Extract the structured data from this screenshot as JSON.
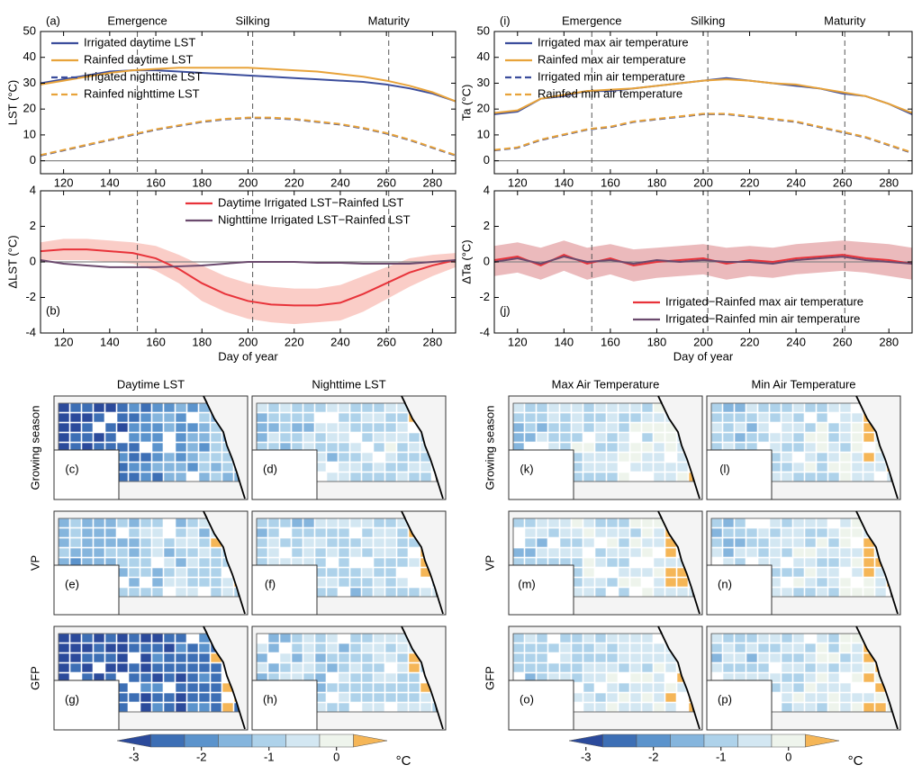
{
  "chart_data": [
    {
      "type": "line",
      "panel_label": "(a)",
      "ylabel": "LST (°C)",
      "legend": "upper left",
      "xlim": [
        110,
        290
      ],
      "xticks": [
        120,
        140,
        160,
        180,
        200,
        220,
        240,
        260,
        280
      ],
      "ylim": [
        -5,
        50
      ],
      "yticks": [
        0,
        10,
        20,
        30,
        40,
        50
      ],
      "annotations": [
        {
          "label": "Emergence",
          "x": 152
        },
        {
          "label": "Silking",
          "x": 202
        },
        {
          "label": "Maturity",
          "x": 261
        }
      ],
      "x": [
        110,
        120,
        130,
        140,
        150,
        160,
        170,
        180,
        190,
        200,
        210,
        220,
        230,
        240,
        250,
        260,
        270,
        280,
        290
      ],
      "series": [
        {
          "name": "Irrigated daytime LST",
          "color": "#3b4d9c",
          "dash": false,
          "values": [
            30,
            31.5,
            33,
            34.5,
            35,
            35,
            34.5,
            34,
            33.5,
            33,
            32.5,
            32,
            31.5,
            31,
            30.5,
            29.5,
            28,
            26,
            23
          ]
        },
        {
          "name": "Rainfed daytime LST",
          "color": "#e8a33a",
          "dash": false,
          "values": [
            29.5,
            31,
            32.5,
            34,
            35,
            35.5,
            36,
            36,
            36,
            36,
            35.5,
            35,
            34.5,
            33.5,
            32.5,
            31,
            29,
            26.5,
            23
          ]
        },
        {
          "name": "Irrigated nighttime LST",
          "color": "#3b4d9c",
          "dash": true,
          "values": [
            2,
            4,
            6,
            8,
            10,
            12,
            13.5,
            15,
            16,
            16.5,
            16.5,
            16,
            15,
            14,
            12.5,
            10.5,
            8,
            5,
            2
          ]
        },
        {
          "name": "Rainfed nighttime LST",
          "color": "#e8a33a",
          "dash": true,
          "values": [
            2.2,
            4.2,
            6.2,
            8.2,
            10.2,
            12.2,
            13.7,
            15.2,
            16.2,
            16.7,
            16.7,
            16.2,
            15.2,
            14.2,
            12.7,
            10.7,
            8.2,
            5.2,
            2.2
          ]
        }
      ]
    },
    {
      "type": "line",
      "panel_label": "(b)",
      "ylabel": "ΔLST (°C)",
      "xlabel": "Day of year",
      "legend": "upper right",
      "xlim": [
        110,
        290
      ],
      "xticks": [
        120,
        140,
        160,
        180,
        200,
        220,
        240,
        260,
        280
      ],
      "ylim": [
        -4,
        4
      ],
      "yticks": [
        -4,
        -2,
        0,
        2,
        4
      ],
      "phase_lines": [
        152,
        202,
        261
      ],
      "x": [
        110,
        120,
        130,
        140,
        150,
        160,
        170,
        180,
        190,
        200,
        210,
        220,
        230,
        240,
        250,
        260,
        270,
        280,
        290
      ],
      "series": [
        {
          "name": "Daytime Irrigated LST−Rainfed LST",
          "color": "#e8333a",
          "band_color": "#f8bcb4",
          "dash": false,
          "values": [
            0.6,
            0.7,
            0.7,
            0.6,
            0.5,
            0.2,
            -0.4,
            -1.2,
            -1.8,
            -2.2,
            -2.4,
            -2.45,
            -2.45,
            -2.3,
            -1.8,
            -1.2,
            -0.6,
            -0.2,
            0.1
          ],
          "upper": [
            1.1,
            1.3,
            1.3,
            1.2,
            1.1,
            0.9,
            0.4,
            -0.2,
            -0.8,
            -1.2,
            -1.4,
            -1.5,
            -1.5,
            -1.3,
            -0.8,
            -0.3,
            0.2,
            0.4,
            0.5
          ],
          "lower": [
            0.1,
            0.1,
            0.1,
            0,
            -0.1,
            -0.5,
            -1.2,
            -2.2,
            -2.8,
            -3.2,
            -3.4,
            -3.5,
            -3.4,
            -3.3,
            -2.8,
            -2.1,
            -1.4,
            -0.8,
            -0.3
          ]
        },
        {
          "name": "Nighttime Irrigated LST−Rainfed LST",
          "color": "#6b4a6e",
          "dash": false,
          "values": [
            0.1,
            -0.1,
            -0.2,
            -0.3,
            -0.3,
            -0.3,
            -0.25,
            -0.2,
            -0.1,
            0,
            0,
            0,
            -0.05,
            -0.05,
            -0.1,
            -0.1,
            -0.1,
            0,
            0.1
          ]
        }
      ]
    },
    {
      "type": "line",
      "panel_label": "(i)",
      "ylabel": "Ta (°C)",
      "legend": "upper left",
      "xlim": [
        110,
        290
      ],
      "xticks": [
        120,
        140,
        160,
        180,
        200,
        220,
        240,
        260,
        280
      ],
      "ylim": [
        -5,
        50
      ],
      "yticks": [
        0,
        10,
        20,
        30,
        40,
        50
      ],
      "annotations": [
        {
          "label": "Emergence",
          "x": 152
        },
        {
          "label": "Silking",
          "x": 202
        },
        {
          "label": "Maturity",
          "x": 261
        }
      ],
      "x": [
        110,
        120,
        130,
        140,
        150,
        160,
        170,
        180,
        190,
        200,
        210,
        220,
        230,
        240,
        250,
        260,
        270,
        280,
        290
      ],
      "series": [
        {
          "name": "Irrigated max air temperature",
          "color": "#3b4d9c",
          "dash": false,
          "values": [
            18,
            19,
            24,
            25,
            27,
            27,
            28,
            29,
            30,
            31,
            32,
            31,
            30,
            29,
            28,
            26,
            25,
            22,
            18
          ]
        },
        {
          "name": "Rainfed max air temperature",
          "color": "#e8a33a",
          "dash": false,
          "values": [
            18.5,
            19.5,
            24,
            25.5,
            27,
            27.5,
            28,
            29,
            30,
            31,
            31.5,
            31,
            30,
            29.5,
            28,
            26.5,
            25,
            22,
            18.5
          ]
        },
        {
          "name": "Irrigated min air temperature",
          "color": "#3b4d9c",
          "dash": true,
          "values": [
            4,
            5,
            8,
            10,
            12,
            13,
            15,
            16,
            17,
            18,
            18,
            17,
            16,
            15,
            13,
            11,
            9,
            6,
            3
          ]
        },
        {
          "name": "Rainfed min air temperature",
          "color": "#e8a33a",
          "dash": true,
          "values": [
            4.2,
            5.2,
            8.2,
            10.2,
            12.2,
            13.2,
            15.2,
            16.2,
            17.2,
            18.2,
            18.2,
            17.2,
            16.2,
            15.2,
            13.2,
            11.2,
            9.2,
            6.2,
            3.2
          ]
        }
      ]
    },
    {
      "type": "line",
      "panel_label": "(j)",
      "ylabel": "ΔTa (°C)",
      "xlabel": "Day of year",
      "legend": "lower right",
      "xlim": [
        110,
        290
      ],
      "xticks": [
        120,
        140,
        160,
        180,
        200,
        220,
        240,
        260,
        280
      ],
      "ylim": [
        -4,
        4
      ],
      "yticks": [
        -4,
        -2,
        0,
        2,
        4
      ],
      "phase_lines": [
        152,
        202,
        261
      ],
      "x": [
        110,
        120,
        130,
        140,
        150,
        160,
        170,
        180,
        190,
        200,
        210,
        220,
        230,
        240,
        250,
        260,
        270,
        280,
        290
      ],
      "series": [
        {
          "name": "Irrigated−Rainfed max air temperature",
          "color": "#e8333a",
          "band_color": "#e4a3a6",
          "dash": false,
          "values": [
            0.1,
            0.3,
            -0.2,
            0.4,
            -0.1,
            0.2,
            -0.2,
            0,
            0.1,
            0.2,
            -0.1,
            0.1,
            0,
            0.2,
            0.3,
            0.4,
            0.2,
            0.1,
            -0.1
          ],
          "upper": [
            0.9,
            1.1,
            0.8,
            1.2,
            0.8,
            1.0,
            0.7,
            0.8,
            0.9,
            1.0,
            0.8,
            0.9,
            0.8,
            1.0,
            1.1,
            1.2,
            1.1,
            1.0,
            0.8
          ],
          "lower": [
            -0.8,
            -0.6,
            -1.0,
            -0.5,
            -1.0,
            -0.7,
            -1.1,
            -0.9,
            -0.8,
            -0.7,
            -1.0,
            -0.8,
            -0.9,
            -0.7,
            -0.6,
            -0.5,
            -0.6,
            -0.8,
            -1.0
          ]
        },
        {
          "name": "Irrigated−Rainfed min air temperature",
          "color": "#6b4a6e",
          "dash": false,
          "values": [
            0,
            0.2,
            -0.1,
            0.3,
            0,
            0.1,
            -0.1,
            0.1,
            0,
            0.1,
            0,
            0,
            -0.1,
            0.1,
            0.2,
            0.3,
            0.1,
            0,
            -0.1
          ]
        }
      ]
    }
  ],
  "maps": {
    "columns": [
      "Daytime LST",
      "Nighttime LST",
      "Max Air Temperature",
      "Min Air Temperature"
    ],
    "rows": [
      "Growing season",
      "VP",
      "GFP"
    ],
    "panel_labels": [
      [
        "(c)",
        "(d)",
        "(k)",
        "(l)"
      ],
      [
        "(e)",
        "(f)",
        "(m)",
        "(n)"
      ],
      [
        "(g)",
        "(h)",
        "(o)",
        "(p)"
      ]
    ],
    "colorbar": {
      "lim": [
        -3.25,
        0.75
      ],
      "ticks": [
        -3,
        -2,
        -1,
        0
      ],
      "unit": "°C",
      "colors": [
        "#2b4a9b",
        "#3d6fb5",
        "#5b93cc",
        "#85b5dd",
        "#aed2ea",
        "#d3e7f2",
        "#eef4ec",
        "#f5b657"
      ]
    }
  }
}
